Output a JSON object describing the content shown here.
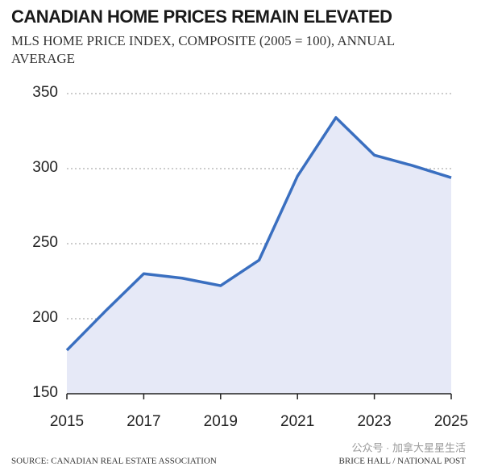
{
  "chart_data": {
    "type": "area",
    "title": "CANADIAN HOME PRICES REMAIN ELEVATED",
    "subtitle": "MLS HOME PRICE INDEX, COMPOSITE (2005 = 100), ANNUAL AVERAGE",
    "x": [
      2015,
      2016,
      2017,
      2018,
      2019,
      2020,
      2021,
      2022,
      2023,
      2024,
      2025
    ],
    "values": [
      179,
      205,
      230,
      227,
      222,
      239,
      295,
      334,
      309,
      302,
      294
    ],
    "color": "#3a6fc0",
    "fill": "#e6e9f7",
    "xlim": [
      2015,
      2025
    ],
    "xticks": [
      2015,
      2017,
      2019,
      2021,
      2023,
      2025
    ],
    "ylim": [
      150,
      350
    ],
    "yticks": [
      150,
      200,
      250,
      300,
      350
    ],
    "grid": true,
    "source": "SOURCE: CANADIAN REAL ESTATE ASSOCIATION",
    "credit": "BRICE HALL / NATIONAL POST",
    "watermark": "公众号 · 加拿大星星生活"
  }
}
